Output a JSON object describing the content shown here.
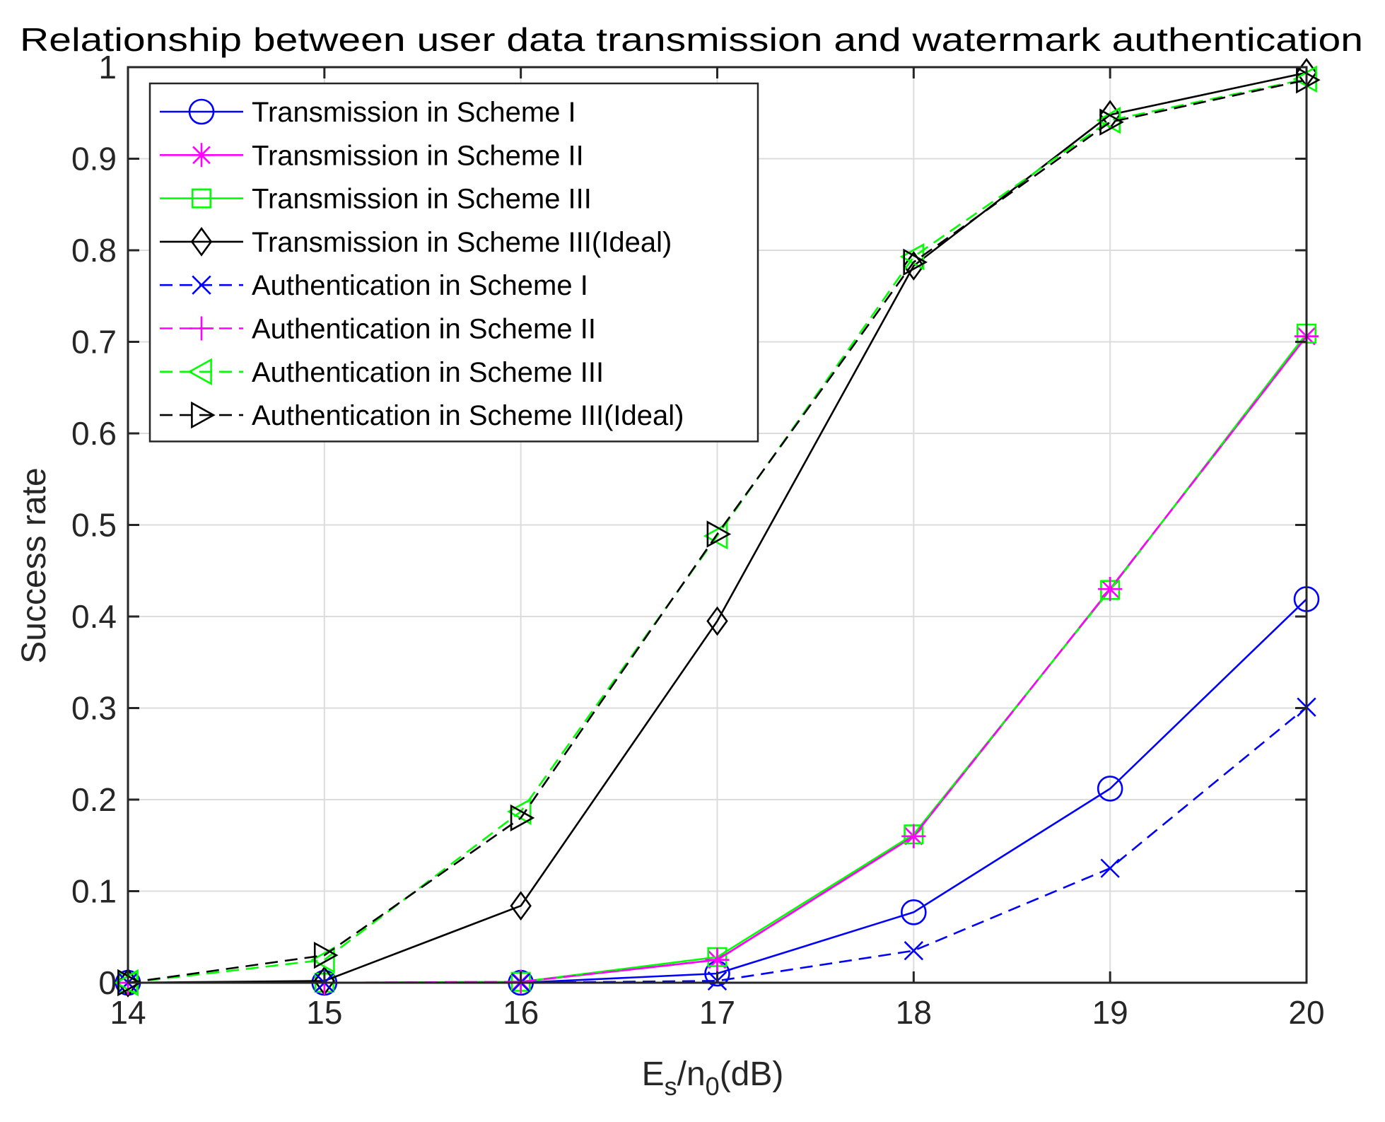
{
  "chart_data": {
    "type": "line",
    "title": "Relationship between user data transmission and watermark authentication",
    "xlabel": {
      "base": "E",
      "sub1": "s",
      "mid": "/n",
      "sub2": "0",
      "tail": "(dB)"
    },
    "ylabel": "Success rate",
    "x": [
      14,
      15,
      16,
      17,
      18,
      19,
      20
    ],
    "xlim": [
      14,
      20
    ],
    "ylim": [
      0,
      1
    ],
    "xticks": [
      "14",
      "15",
      "16",
      "17",
      "18",
      "19",
      "20"
    ],
    "yticks": [
      "0",
      "0.1",
      "0.2",
      "0.3",
      "0.4",
      "0.5",
      "0.6",
      "0.7",
      "0.8",
      "0.9",
      "1"
    ],
    "grid": true,
    "legend_position": "top-left",
    "series": [
      {
        "name": "Transmission in Scheme I",
        "color": "#0000ff",
        "dash": "solid",
        "marker": "circle",
        "values": [
          0,
          0,
          0,
          0.01,
          0.077,
          0.212,
          0.419
        ]
      },
      {
        "name": "Transmission in Scheme II",
        "color": "#ff00ff",
        "dash": "solid",
        "marker": "asterisk",
        "values": [
          0,
          0,
          0.001,
          0.025,
          0.16,
          0.43,
          0.706
        ]
      },
      {
        "name": "Transmission in Scheme III",
        "color": "#00ff00",
        "dash": "solid",
        "marker": "square",
        "values": [
          0,
          0,
          0.001,
          0.028,
          0.162,
          0.429,
          0.709
        ]
      },
      {
        "name": "Transmission in Scheme III(Ideal)",
        "color": "#000000",
        "dash": "solid",
        "marker": "diamond",
        "values": [
          0,
          0.002,
          0.084,
          0.395,
          0.783,
          0.948,
          0.994
        ]
      },
      {
        "name": "Authentication in Scheme I",
        "color": "#0000ff",
        "dash": "dashed",
        "marker": "x",
        "values": [
          0,
          0,
          0,
          0.002,
          0.035,
          0.125,
          0.301
        ]
      },
      {
        "name": "Authentication in Scheme II",
        "color": "#ff00ff",
        "dash": "dashed",
        "marker": "plus",
        "values": [
          0,
          0,
          0.001,
          0.025,
          0.16,
          0.43,
          0.706
        ]
      },
      {
        "name": "Authentication in Scheme III",
        "color": "#00ff00",
        "dash": "dashed",
        "marker": "triangle-left",
        "values": [
          0,
          0.025,
          0.187,
          0.488,
          0.793,
          0.942,
          0.987
        ]
      },
      {
        "name": "Authentication in Scheme III(Ideal)",
        "color": "#000000",
        "dash": "dashed",
        "marker": "triangle-right",
        "values": [
          0,
          0.03,
          0.18,
          0.49,
          0.787,
          0.94,
          0.986
        ]
      }
    ]
  }
}
